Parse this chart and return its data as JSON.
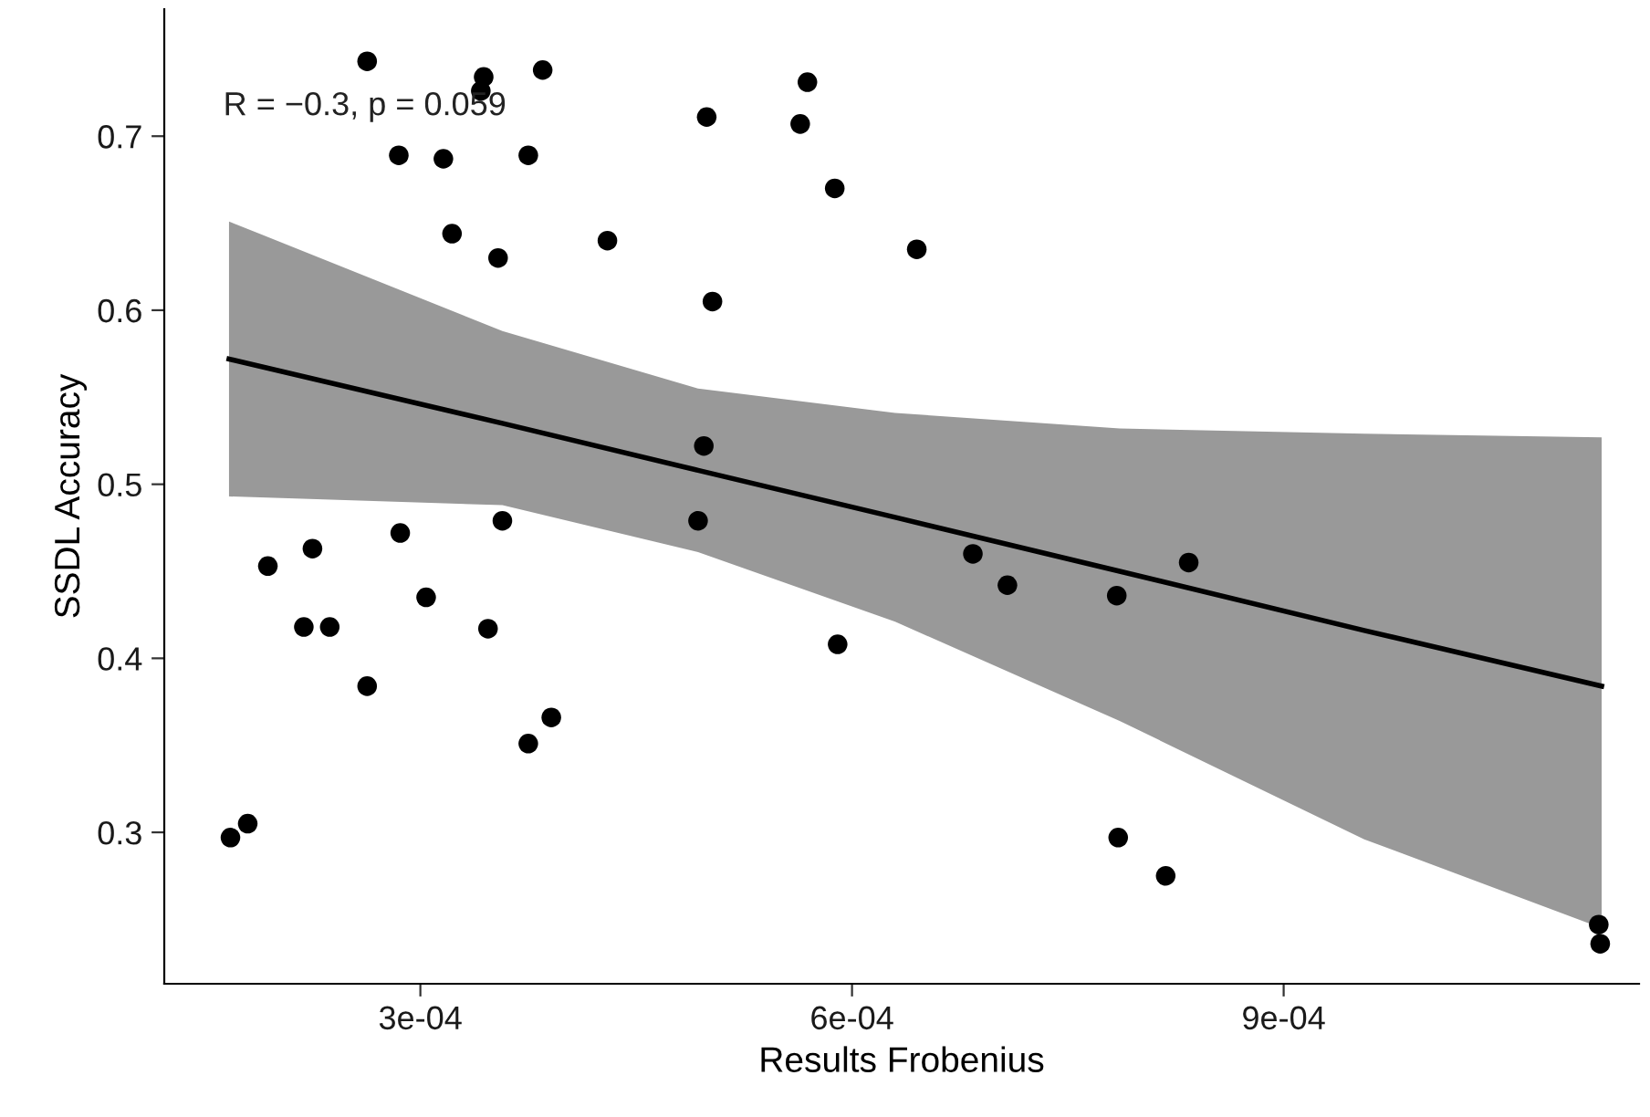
{
  "chart_data": {
    "type": "scatter",
    "xlabel": "Results Frobenius",
    "ylabel": "SSDL Accuracy",
    "annotations": [
      "R = −0.3, p = 0.059"
    ],
    "xlim": [
      0.000122,
      0.001147
    ],
    "ylim": [
      0.213,
      0.773
    ],
    "xticks": [
      {
        "value": 0.0003,
        "label": "3e-04"
      },
      {
        "value": 0.0006,
        "label": "6e-04"
      },
      {
        "value": 0.0009,
        "label": "9e-04"
      }
    ],
    "yticks": [
      0.3,
      0.4,
      0.5,
      0.6,
      0.7
    ],
    "grid": false,
    "legend": false,
    "marker": "circle",
    "series": [
      {
        "color": "#000000",
        "x": [
          0.000263,
          0.000344,
          0.000342,
          0.000385,
          0.000569,
          0.000499,
          0.000564,
          0.000285,
          0.000316,
          0.000375,
          0.000588,
          0.000322,
          0.000354,
          0.00043,
          0.000645,
          0.000503,
          0.000497,
          0.000357,
          0.000493,
          0.000286,
          0.000225,
          0.000194,
          0.000304,
          0.000219,
          0.000237,
          0.000347,
          0.00059,
          0.000263,
          0.000391,
          0.000375,
          0.00018,
          0.000168,
          0.000684,
          0.000708,
          0.000784,
          0.000834,
          0.000785,
          0.000818,
          0.001119,
          0.00112
        ],
        "values": [
          0.743,
          0.734,
          0.726,
          0.738,
          0.731,
          0.711,
          0.707,
          0.689,
          0.687,
          0.689,
          0.67,
          0.644,
          0.63,
          0.64,
          0.635,
          0.605,
          0.522,
          0.479,
          0.479,
          0.472,
          0.463,
          0.453,
          0.435,
          0.418,
          0.418,
          0.417,
          0.408,
          0.384,
          0.366,
          0.351,
          0.305,
          0.297,
          0.46,
          0.442,
          0.436,
          0.455,
          0.297,
          0.275,
          0.247,
          0.236
        ]
      },
      {
        "type": "line",
        "color": "#000000",
        "marker": "none",
        "line_style": "solid",
        "x": [
          0.000167,
          0.000357,
          0.000493,
          0.00063,
          0.000786,
          0.000956,
          0.001121
        ],
        "values": [
          0.572,
          0.535,
          0.508,
          0.481,
          0.45,
          0.416,
          0.384
        ],
        "lower": [
          0.493,
          0.488,
          0.461,
          0.421,
          0.364,
          0.296,
          0.245
        ],
        "upper": [
          0.651,
          0.588,
          0.555,
          0.541,
          0.532,
          0.529,
          0.527
        ]
      }
    ]
  }
}
